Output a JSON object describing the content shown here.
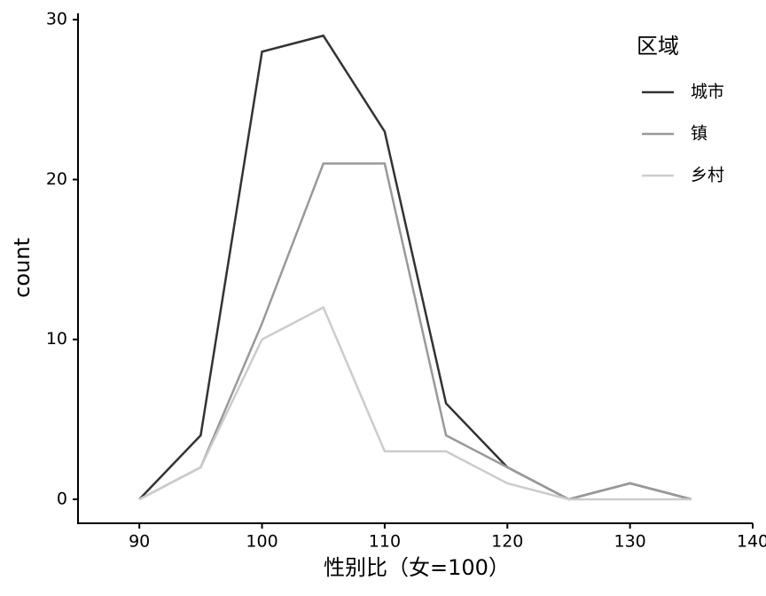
{
  "chart_data": {
    "type": "line",
    "x_label": "性别比（女=100）",
    "y_label": "count",
    "x": [
      90,
      95,
      100,
      105,
      110,
      115,
      120,
      125,
      130,
      135
    ],
    "series": [
      {
        "name": "城市",
        "color": "#333333",
        "values": [
          0,
          4,
          28,
          29,
          23,
          6,
          2,
          0,
          1,
          0
        ]
      },
      {
        "name": "镇",
        "color": "#999999",
        "values": [
          0,
          2,
          11,
          21,
          21,
          4,
          2,
          0,
          1,
          0
        ]
      },
      {
        "name": "乡村",
        "color": "#cccccc",
        "values": [
          0,
          2,
          10,
          12,
          3,
          3,
          1,
          0,
          0,
          0
        ]
      }
    ],
    "legend_title": "区域",
    "legend": "right",
    "xlim": [
      85,
      140
    ],
    "xticks": [
      90,
      100,
      110,
      120,
      130,
      140
    ],
    "ylim": [
      -1.5,
      30.4
    ],
    "yticks": [
      0,
      10,
      20,
      30
    ],
    "grid": false
  }
}
